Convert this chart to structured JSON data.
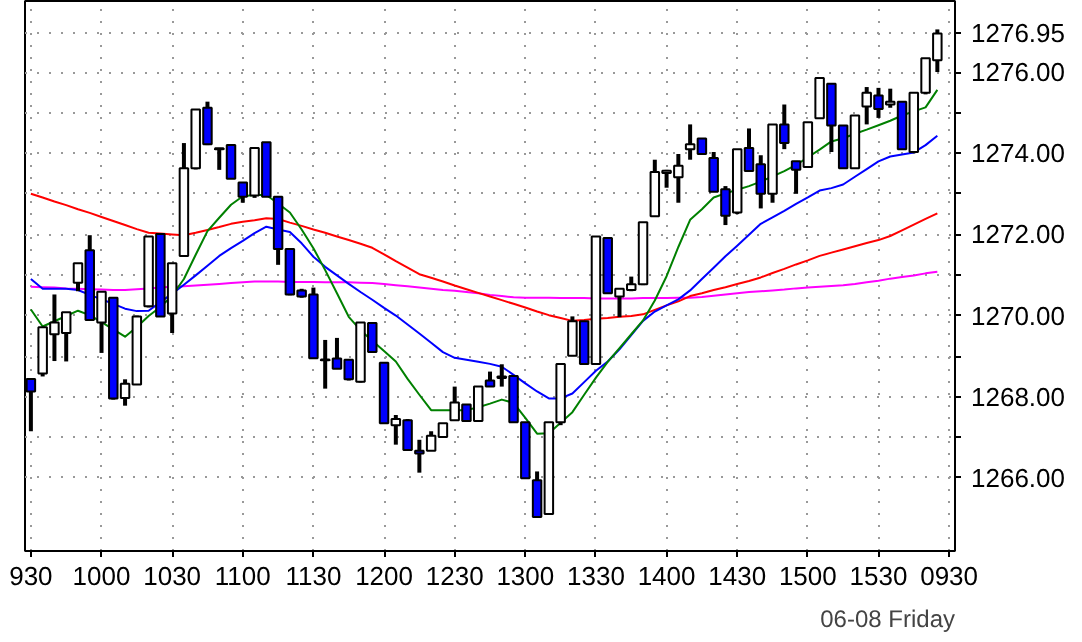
{
  "chart_data": {
    "type": "candlestick",
    "grid": true,
    "colors": [
      "#0000ff",
      "#ffffff",
      "#ffffff",
      "#ffffff",
      "#ffffff",
      "#0000ff",
      "#ffffff",
      "#0000ff",
      "#ffffff",
      "#ffffff",
      "#ffffff",
      "#0000ff",
      "#ffffff",
      "#ffffff",
      "#ffffff",
      "#0000ff",
      "#0000ff",
      "#0000ff",
      "#0000ff",
      "#ffffff",
      "#0000ff",
      "#0000ff",
      "#0000ff",
      "#0000ff",
      "#0000ff",
      "#0000ff",
      "#0000ff",
      "#0000ff",
      "#ffffff",
      "#0000ff",
      "#0000ff",
      "#ffffff",
      "#0000ff",
      "#0000ff",
      "#ffffff",
      "#ffffff",
      "#ffffff",
      "#0000ff",
      "#ffffff",
      "#0000ff",
      "#ffffff",
      "#0000ff",
      "#0000ff",
      "#0000ff",
      "#ffffff",
      "#ffffff",
      "#ffffff",
      "#0000ff",
      "#ffffff",
      "#0000ff",
      "#ffffff",
      "#ffffff",
      "#ffffff",
      "#ffffff",
      "#ffffff",
      "#ffffff",
      "#ffffff",
      "#0000ff",
      "#0000ff",
      "#0000ff",
      "#ffffff",
      "#0000ff",
      "#0000ff",
      "#ffffff",
      "#0000ff",
      "#0000ff",
      "#ffffff",
      "#ffffff",
      "#0000ff",
      "#0000ff",
      "#ffffff",
      "#ffffff",
      "#0000ff",
      "#ffffff",
      "#0000ff",
      "#ffffff",
      "#ffffff",
      "#ffffff",
      null
    ],
    "categories": [
      "930",
      null,
      null,
      null,
      null,
      null,
      "1000",
      null,
      null,
      null,
      null,
      null,
      "1030",
      null,
      null,
      null,
      null,
      null,
      "1100",
      null,
      null,
      null,
      null,
      null,
      "1130",
      null,
      null,
      null,
      null,
      null,
      "1200",
      null,
      null,
      null,
      null,
      null,
      "1230",
      null,
      null,
      null,
      null,
      null,
      "1300",
      null,
      null,
      null,
      null,
      null,
      "1330",
      null,
      null,
      null,
      null,
      null,
      "1400",
      null,
      null,
      null,
      null,
      null,
      "1430",
      null,
      null,
      null,
      null,
      null,
      "1500",
      null,
      null,
      null,
      null,
      null,
      "1530",
      null,
      null,
      null,
      null,
      null,
      "0930"
    ],
    "ohlc": [
      [
        1268.44,
        1268.44,
        1267.15,
        1268.13
      ],
      [
        1268.57,
        1269.71,
        1268.5,
        1269.71
      ],
      [
        1269.54,
        1270.52,
        1268.88,
        1269.83
      ],
      [
        1269.57,
        1270.08,
        1268.87,
        1270.08
      ],
      [
        1270.81,
        1271.29,
        1270.6,
        1271.29
      ],
      [
        1271.61,
        1271.98,
        1269.89,
        1269.89
      ],
      [
        1269.83,
        1270.59,
        1269.08,
        1270.59
      ],
      [
        1270.44,
        1270.44,
        1267.93,
        1267.96
      ],
      [
        1267.97,
        1268.43,
        1267.78,
        1268.32
      ],
      [
        1268.3,
        1270.0,
        1268.3,
        1269.98
      ],
      [
        1270.23,
        1271.95,
        1270.2,
        1271.95
      ],
      [
        1272.01,
        1272.01,
        1269.98,
        1269.98
      ],
      [
        1270.05,
        1271.29,
        1269.57,
        1271.29
      ],
      [
        1271.47,
        1274.25,
        1271.47,
        1273.63
      ],
      [
        1273.63,
        1275.08,
        1273.6,
        1275.08
      ],
      [
        1275.12,
        1275.27,
        1274.2,
        1274.22
      ],
      [
        1274.12,
        1274.13,
        1273.59,
        1274.1
      ],
      [
        1274.2,
        1274.2,
        1273.37,
        1273.37
      ],
      [
        1273.28,
        1273.28,
        1272.78,
        1272.93
      ],
      [
        1272.96,
        1274.13,
        1272.9,
        1274.13
      ],
      [
        1274.27,
        1274.27,
        1272.93,
        1272.93
      ],
      [
        1272.93,
        1272.93,
        1271.25,
        1271.64
      ],
      [
        1271.64,
        1271.64,
        1270.5,
        1270.52
      ],
      [
        1270.62,
        1270.66,
        1270.44,
        1270.47
      ],
      [
        1270.52,
        1270.69,
        1268.95,
        1268.95
      ],
      [
        1268.92,
        1269.4,
        1268.2,
        1268.9
      ],
      [
        1268.94,
        1269.45,
        1268.69,
        1268.69
      ],
      [
        1268.91,
        1268.91,
        1268.4,
        1268.43
      ],
      [
        1268.37,
        1269.83,
        1268.35,
        1269.83
      ],
      [
        1269.82,
        1269.82,
        1269.1,
        1269.1
      ],
      [
        1268.84,
        1268.84,
        1267.35,
        1267.35
      ],
      [
        1267.3,
        1267.55,
        1266.82,
        1267.45
      ],
      [
        1267.42,
        1267.45,
        1266.69,
        1266.69
      ],
      [
        1266.67,
        1266.94,
        1266.13,
        1266.6
      ],
      [
        1266.67,
        1267.15,
        1266.67,
        1267.04
      ],
      [
        1267.01,
        1267.35,
        1267.0,
        1267.35
      ],
      [
        1267.42,
        1268.25,
        1267.42,
        1267.86
      ],
      [
        1267.81,
        1267.81,
        1267.4,
        1267.4
      ],
      [
        1267.4,
        1268.25,
        1267.4,
        1268.25
      ],
      [
        1268.4,
        1268.62,
        1268.25,
        1268.25
      ],
      [
        1268.46,
        1268.8,
        1268.25,
        1268.5
      ],
      [
        1268.51,
        1268.51,
        1267.37,
        1267.37
      ],
      [
        1267.37,
        1267.37,
        1265.99,
        1265.99
      ],
      [
        1265.94,
        1266.16,
        1265.04,
        1265.04
      ],
      [
        1265.11,
        1267.37,
        1265.1,
        1267.37
      ],
      [
        1267.37,
        1268.81,
        1267.3,
        1268.81
      ],
      [
        1269.01,
        1269.98,
        1269.0,
        1269.86
      ],
      [
        1269.86,
        1269.86,
        1268.81,
        1268.81
      ],
      [
        1268.81,
        1271.95,
        1268.81,
        1271.95
      ],
      [
        1271.91,
        1271.91,
        1270.55,
        1270.55
      ],
      [
        1270.47,
        1270.66,
        1269.96,
        1270.66
      ],
      [
        1270.63,
        1270.96,
        1270.6,
        1270.77
      ],
      [
        1270.77,
        1272.3,
        1270.75,
        1272.3
      ],
      [
        1272.45,
        1273.84,
        1272.45,
        1273.54
      ],
      [
        1273.51,
        1273.59,
        1273.15,
        1273.57
      ],
      [
        1273.41,
        1273.98,
        1272.78,
        1273.69
      ],
      [
        1274.1,
        1274.71,
        1273.84,
        1274.22
      ],
      [
        1274.36,
        1274.36,
        1273.98,
        1273.98
      ],
      [
        1273.88,
        1274.03,
        1273.05,
        1273.05
      ],
      [
        1273.11,
        1273.19,
        1272.23,
        1272.46
      ],
      [
        1272.54,
        1274.1,
        1272.5,
        1274.1
      ],
      [
        1274.13,
        1274.61,
        1273.56,
        1273.56
      ],
      [
        1273.73,
        1273.95,
        1272.64,
        1273.0
      ],
      [
        1273.0,
        1274.71,
        1272.78,
        1274.71
      ],
      [
        1274.71,
        1275.2,
        1274.1,
        1274.25
      ],
      [
        1273.8,
        1273.81,
        1273.0,
        1273.59
      ],
      [
        1273.66,
        1274.76,
        1273.66,
        1274.76
      ],
      [
        1274.86,
        1275.85,
        1274.85,
        1275.85
      ],
      [
        1275.71,
        1275.71,
        1274.03,
        1274.68
      ],
      [
        1274.68,
        1274.68,
        1273.63,
        1273.63
      ],
      [
        1273.63,
        1274.93,
        1273.63,
        1274.93
      ],
      [
        1275.15,
        1275.63,
        1274.71,
        1275.49
      ],
      [
        1275.42,
        1275.61,
        1274.87,
        1275.09
      ],
      [
        1275.2,
        1275.59,
        1275.12,
        1275.27
      ],
      [
        1275.27,
        1275.27,
        1274.1,
        1274.1
      ],
      [
        1274.03,
        1275.49,
        1274.0,
        1275.49
      ],
      [
        1275.49,
        1276.34,
        1275.45,
        1276.34
      ],
      [
        1276.29,
        1277.05,
        1276.0,
        1276.95
      ],
      null
    ],
    "series": [
      {
        "type": "line",
        "color": "#ff00ff",
        "values": [
          1270.71,
          1270.7,
          1270.69,
          1270.67,
          1270.66,
          1270.65,
          1270.64,
          1270.63,
          1270.63,
          1270.65,
          1270.67,
          1270.69,
          1270.71,
          1270.72,
          1270.74,
          1270.76,
          1270.78,
          1270.8,
          1270.82,
          1270.84,
          1270.84,
          1270.84,
          1270.83,
          1270.83,
          1270.83,
          1270.82,
          1270.82,
          1270.82,
          1270.81,
          1270.8,
          1270.78,
          1270.75,
          1270.72,
          1270.69,
          1270.66,
          1270.63,
          1270.61,
          1270.58,
          1270.55,
          1270.51,
          1270.48,
          1270.45,
          1270.44,
          1270.44,
          1270.44,
          1270.43,
          1270.43,
          1270.43,
          1270.42,
          1270.42,
          1270.42,
          1270.42,
          1270.43,
          1270.43,
          1270.43,
          1270.44,
          1270.44,
          1270.46,
          1270.49,
          1270.52,
          1270.55,
          1270.58,
          1270.6,
          1270.62,
          1270.64,
          1270.67,
          1270.69,
          1270.71,
          1270.73,
          1270.75,
          1270.78,
          1270.82,
          1270.86,
          1270.91,
          1270.95,
          1270.99,
          1271.04,
          1271.08,
          null
        ]
      },
      {
        "type": "line",
        "color": "#ff0000",
        "values": [
          1273.0,
          1272.91,
          1272.81,
          1272.72,
          1272.62,
          1272.53,
          1272.43,
          1272.33,
          1272.23,
          1272.13,
          1272.04,
          1272.02,
          1272.0,
          1271.98,
          1272.04,
          1272.11,
          1272.18,
          1272.26,
          1272.31,
          1272.35,
          1272.4,
          1272.38,
          1272.29,
          1272.21,
          1272.12,
          1272.04,
          1271.95,
          1271.86,
          1271.77,
          1271.67,
          1271.51,
          1271.34,
          1271.18,
          1271.02,
          1270.93,
          1270.84,
          1270.74,
          1270.65,
          1270.56,
          1270.47,
          1270.38,
          1270.29,
          1270.2,
          1270.1,
          1270.01,
          1269.94,
          1269.87,
          1269.89,
          1269.92,
          1269.94,
          1269.97,
          1269.99,
          1270.03,
          1270.14,
          1270.25,
          1270.35,
          1270.48,
          1270.55,
          1270.63,
          1270.7,
          1270.78,
          1270.85,
          1270.94,
          1271.05,
          1271.15,
          1271.26,
          1271.36,
          1271.47,
          1271.55,
          1271.63,
          1271.71,
          1271.79,
          1271.86,
          1271.96,
          1272.1,
          1272.24,
          1272.38,
          1272.52,
          null
        ]
      },
      {
        "type": "line",
        "color": "#0000ff",
        "values": [
          1270.9,
          1270.66,
          1270.66,
          1270.66,
          1270.63,
          1270.51,
          1270.4,
          1270.29,
          1270.17,
          1270.11,
          1270.12,
          1270.33,
          1270.54,
          1270.76,
          1270.99,
          1271.23,
          1271.47,
          1271.66,
          1271.84,
          1272.03,
          1272.19,
          1272.12,
          1272.06,
          1271.78,
          1271.45,
          1271.2,
          1270.99,
          1270.78,
          1270.58,
          1270.39,
          1270.19,
          1270.0,
          1269.78,
          1269.56,
          1269.33,
          1269.1,
          1268.96,
          1268.91,
          1268.86,
          1268.81,
          1268.74,
          1268.54,
          1268.33,
          1268.13,
          1267.96,
          1267.96,
          1268.08,
          1268.36,
          1268.64,
          1268.87,
          1269.17,
          1269.52,
          1269.87,
          1270.1,
          1270.25,
          1270.4,
          1270.62,
          1270.9,
          1271.18,
          1271.46,
          1271.72,
          1271.99,
          1272.26,
          1272.42,
          1272.58,
          1272.75,
          1272.91,
          1273.08,
          1273.14,
          1273.23,
          1273.42,
          1273.61,
          1273.8,
          1273.92,
          1273.97,
          1274.02,
          1274.2,
          1274.43,
          null
        ]
      },
      {
        "type": "line",
        "color": "#008000",
        "values": [
          1270.15,
          1269.73,
          1269.86,
          1269.99,
          1270.12,
          1270.01,
          1269.84,
          1269.66,
          1269.48,
          1269.72,
          1269.99,
          1270.21,
          1270.49,
          1270.9,
          1271.5,
          1272.08,
          1272.41,
          1272.73,
          1272.94,
          1272.97,
          1272.97,
          1272.76,
          1272.54,
          1272.12,
          1271.66,
          1271.12,
          1270.55,
          1269.97,
          1269.64,
          1269.38,
          1269.13,
          1268.87,
          1268.44,
          1268.05,
          1267.67,
          1267.67,
          1267.67,
          1267.67,
          1267.74,
          1267.83,
          1267.93,
          1267.85,
          1267.48,
          1267.09,
          1267.1,
          1267.36,
          1267.62,
          1268.05,
          1268.47,
          1268.86,
          1269.2,
          1269.54,
          1269.88,
          1270.37,
          1270.97,
          1271.69,
          1272.36,
          1272.62,
          1272.91,
          1273.01,
          1273.1,
          1273.19,
          1273.3,
          1273.43,
          1273.56,
          1273.71,
          1273.9,
          1274.09,
          1274.29,
          1274.37,
          1274.48,
          1274.58,
          1274.69,
          1274.8,
          1274.93,
          1275.03,
          1275.13,
          1275.56,
          null
        ]
      }
    ],
    "ylim": [
      1264.2,
      1277.75
    ],
    "yticks": [
      {
        "value": 1266,
        "label": "1266.00"
      },
      {
        "value": 1267,
        "label": null
      },
      {
        "value": 1268,
        "label": "1268.00"
      },
      {
        "value": 1269,
        "label": null
      },
      {
        "value": 1270,
        "label": "1270.00"
      },
      {
        "value": 1271,
        "label": null
      },
      {
        "value": 1272,
        "label": "1272.00"
      },
      {
        "value": 1273,
        "label": null
      },
      {
        "value": 1274,
        "label": "1274.00"
      },
      {
        "value": 1275,
        "label": null
      },
      {
        "value": 1276,
        "label": "1276.00"
      },
      {
        "value": 1276.95,
        "label": "1276.95"
      }
    ],
    "annotations": [
      "06-08 Friday"
    ]
  }
}
